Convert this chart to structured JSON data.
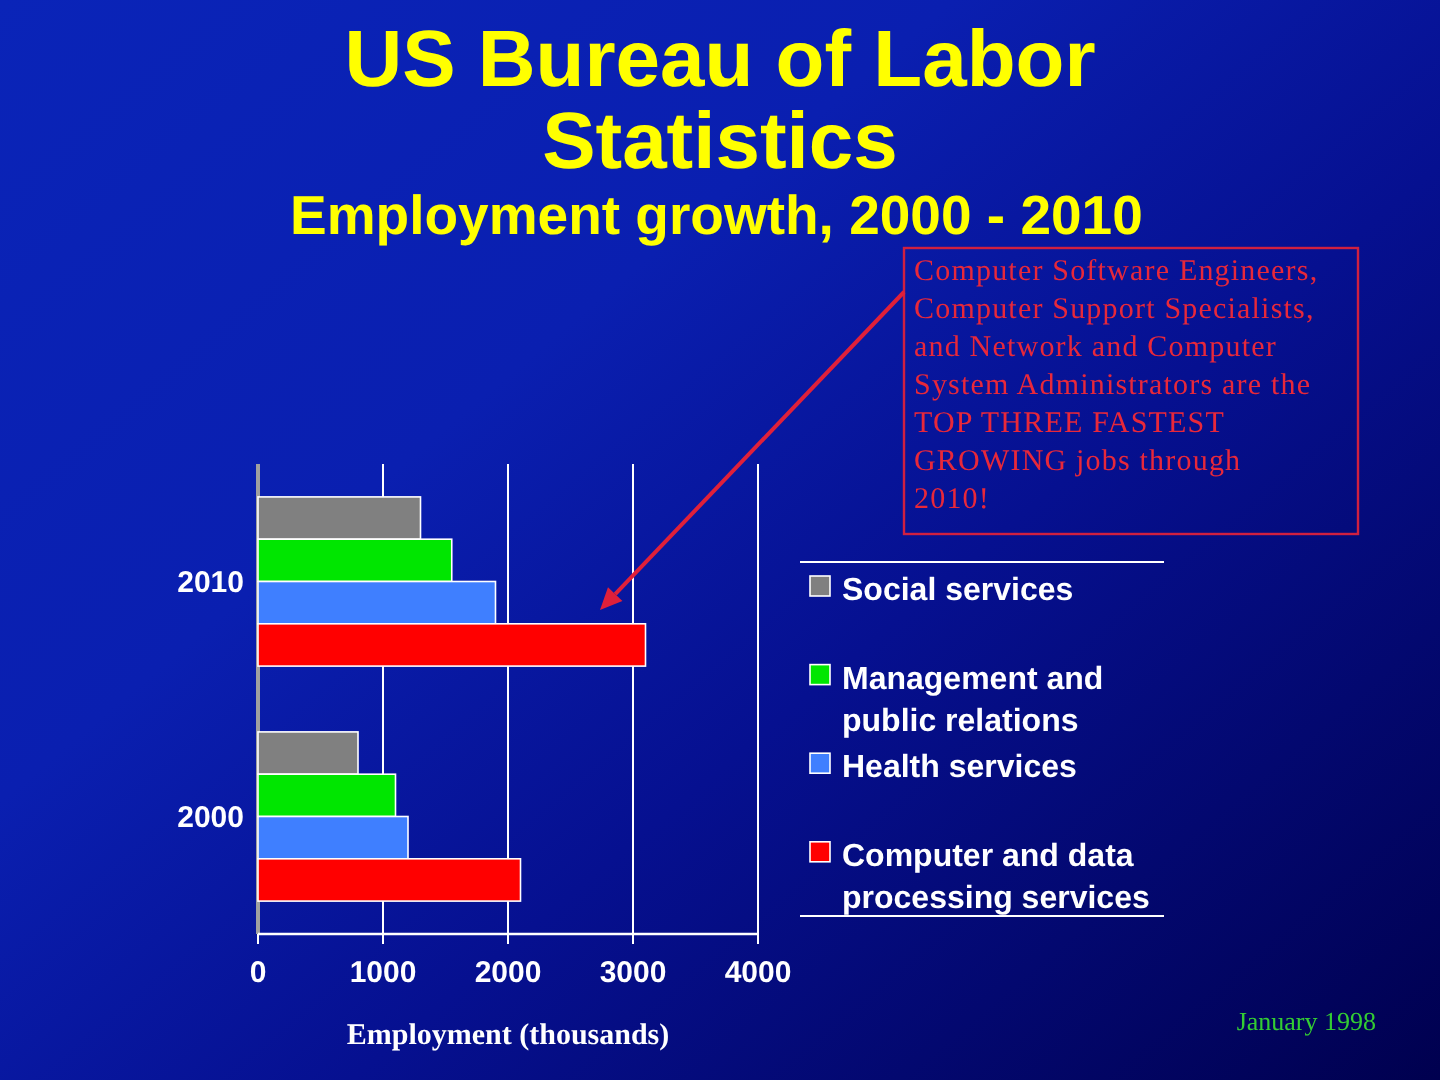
{
  "chart_data": {
    "type": "bar",
    "orientation": "horizontal",
    "title": "US Bureau of Labor Statistics",
    "subtitle": "Employment growth, 2000 - 2010",
    "xlabel": "Employment (thousands)",
    "categories": [
      "2010",
      "2000"
    ],
    "series": [
      {
        "name": "Social services",
        "color": "#808080",
        "values": [
          1300,
          800
        ]
      },
      {
        "name": "Management and public relations",
        "color": "#00e600",
        "values": [
          1550,
          1100
        ]
      },
      {
        "name": "Health services",
        "color": "#3f7fff",
        "values": [
          1900,
          1200
        ]
      },
      {
        "name": "Computer and data processing services",
        "color": "#ff0000",
        "values": [
          3100,
          2100
        ]
      }
    ],
    "xlim": [
      0,
      4000
    ],
    "xticks": [
      0,
      1000,
      2000,
      3000,
      4000
    ],
    "grid": "x",
    "legend": "right",
    "annotations": [
      "Computer Software Engineers, Computer Support Specialists, and Network and Computer System Administrators are the TOP THREE FASTEST GROWING jobs through 2010!",
      "January 1998"
    ]
  }
}
